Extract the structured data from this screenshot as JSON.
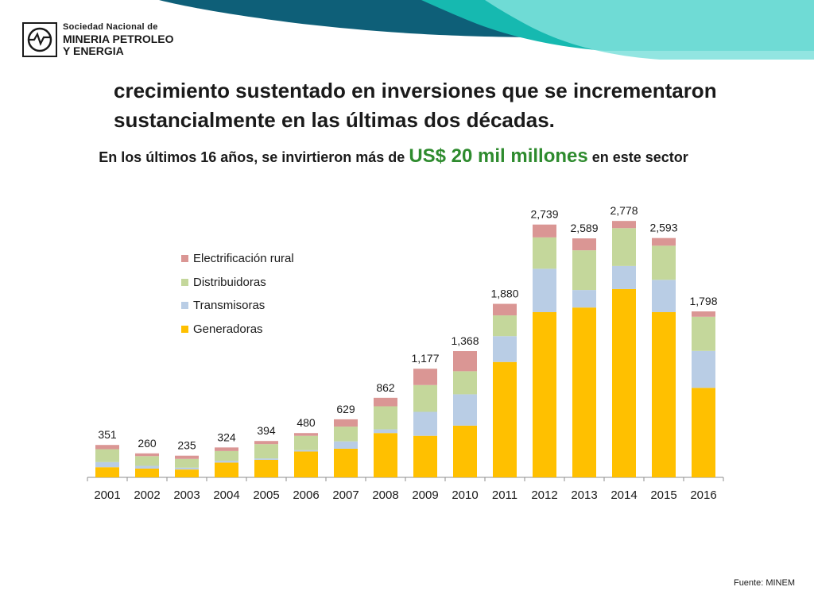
{
  "header": {
    "logo_line1": "Sociedad Nacional de",
    "logo_line2": "MINERIA PETROLEO",
    "logo_line3": "Y ENERGIA",
    "logo_icon": "snmpe-logo-icon"
  },
  "headline": {
    "line1": "crecimiento sustentado en inversiones que se incrementaron",
    "line2": "sustancialmente en las últimas dos décadas."
  },
  "subtitle": {
    "pre": "En los últimos 16 años, se invirtieron más de ",
    "highlight": "US$ 20 mil millones",
    "post": " en este sector"
  },
  "colors": {
    "banner_dark": "#0e5f78",
    "banner_teal": "#16b9b0",
    "banner_light": "#7fe0dc",
    "highlight": "#2e8b2e"
  },
  "source": "Fuente: MINEM",
  "chart_data": {
    "type": "bar",
    "stacked": true,
    "title": "",
    "xlabel": "",
    "ylabel": "",
    "ylim": [
      0,
      2900
    ],
    "grid": false,
    "legend_position": "top-left",
    "categories": [
      "2001",
      "2002",
      "2003",
      "2004",
      "2005",
      "2006",
      "2007",
      "2008",
      "2009",
      "2010",
      "2011",
      "2012",
      "2013",
      "2014",
      "2015",
      "2016"
    ],
    "totals": [
      351,
      260,
      235,
      324,
      394,
      480,
      629,
      862,
      1177,
      1368,
      1880,
      2739,
      2589,
      2778,
      2593,
      1798
    ],
    "total_labels": [
      "351",
      "260",
      "235",
      "324",
      "394",
      "480",
      "629",
      "862",
      "1,177",
      "1,368",
      "1,880",
      "2,739",
      "2,589",
      "2,778",
      "2,593",
      "1,798"
    ],
    "series": [
      {
        "name": "Generadoras",
        "color": "#ffc000",
        "values": [
          110,
          95,
          85,
          160,
          190,
          280,
          310,
          480,
          450,
          560,
          1250,
          1790,
          1840,
          2040,
          1790,
          970
        ]
      },
      {
        "name": "Transmisoras",
        "color": "#b9cde5",
        "values": [
          55,
          30,
          20,
          20,
          15,
          15,
          80,
          40,
          260,
          340,
          280,
          470,
          190,
          250,
          350,
          400
        ]
      },
      {
        "name": "Distribuidoras",
        "color": "#c4d79b",
        "values": [
          140,
          105,
          95,
          105,
          155,
          155,
          160,
          250,
          290,
          250,
          225,
          340,
          430,
          410,
          370,
          370
        ]
      },
      {
        "name": "Electrificación rural",
        "color": "#da9694",
        "values": [
          46,
          30,
          35,
          39,
          34,
          30,
          79,
          92,
          177,
          218,
          125,
          139,
          129,
          78,
          83,
          58
        ]
      }
    ]
  }
}
